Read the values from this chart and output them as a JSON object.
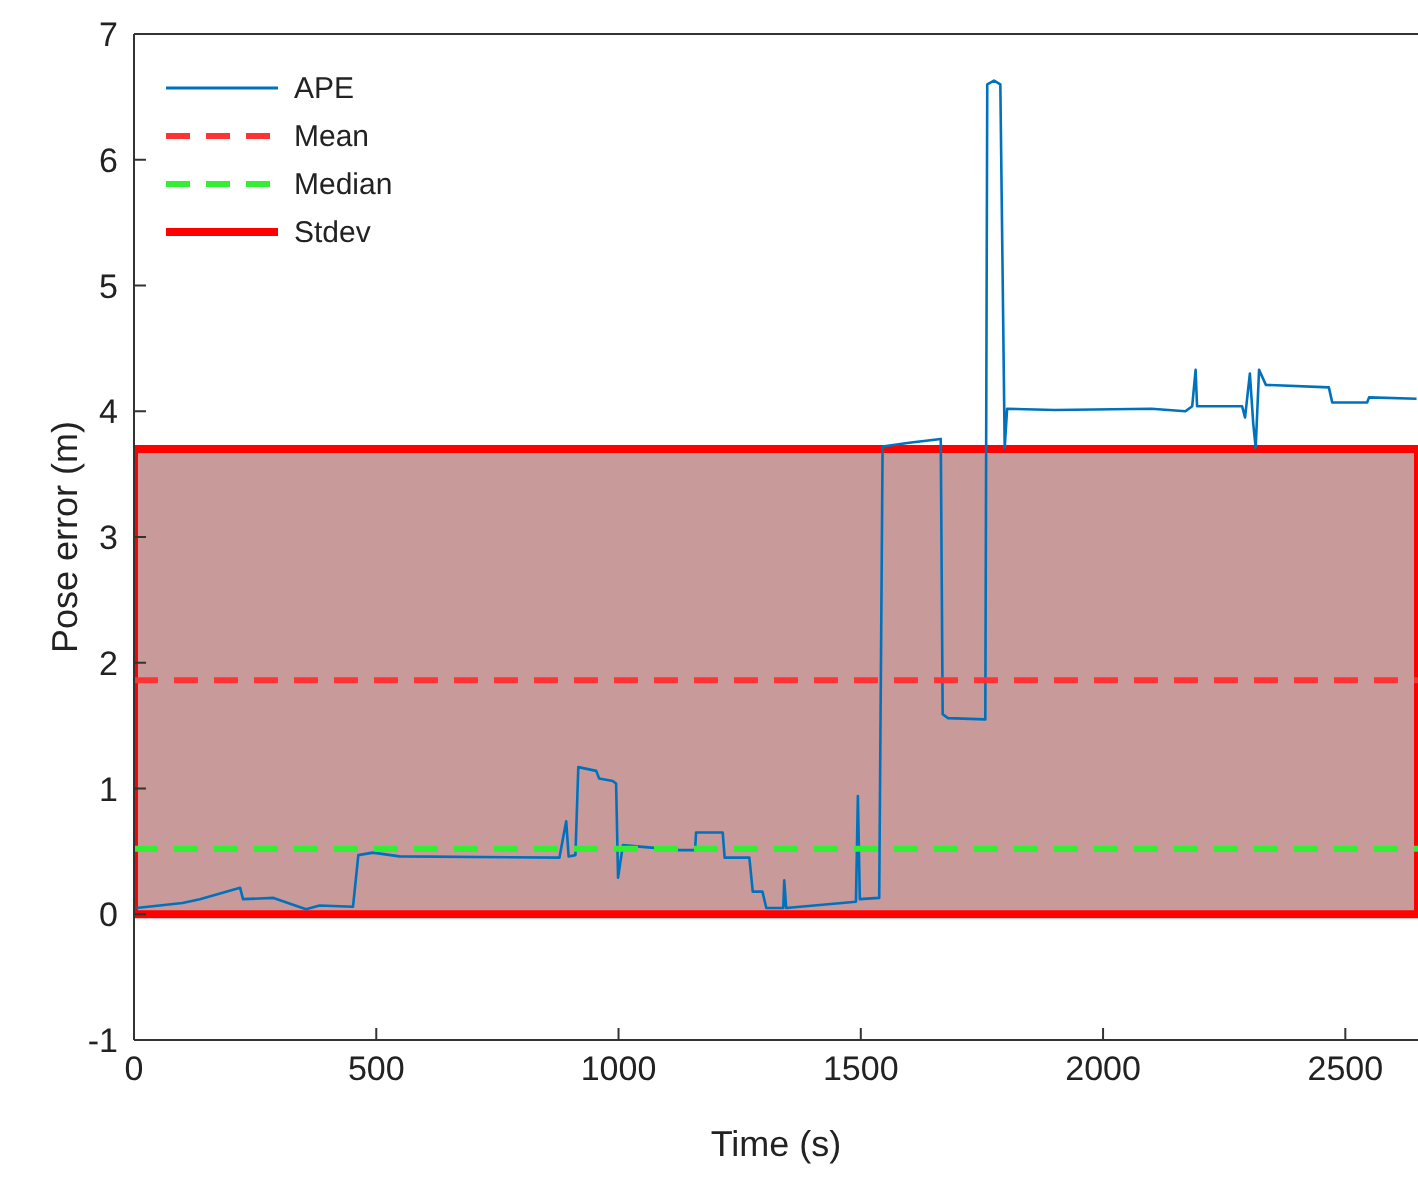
{
  "chart_data": {
    "type": "line",
    "xlabel": "Time (s)",
    "ylabel": "Pose error (m)",
    "xlim": [
      0,
      2650
    ],
    "xticks": [
      0,
      500,
      1000,
      1500,
      2000,
      2500
    ],
    "ylim": [
      -1,
      7
    ],
    "yticks": [
      -1,
      0,
      1,
      2,
      3,
      4,
      5,
      6,
      7
    ],
    "grid": false,
    "legend": "top left",
    "line_style": "solid",
    "marker": "none",
    "series": [
      {
        "name": "APE",
        "color": "#0072bd",
        "x": [
          5,
          100,
          136,
          219,
          225,
          288,
          355,
          383,
          452,
          463,
          493,
          548,
          878,
          892,
          897,
          911,
          917,
          954,
          960,
          988,
          995,
          999,
          1009,
          1126,
          1158,
          1160,
          1215,
          1219,
          1270,
          1277,
          1297,
          1305,
          1340,
          1342,
          1346,
          1490,
          1494,
          1498,
          1538,
          1545,
          1600,
          1665,
          1669,
          1680,
          1757,
          1761,
          1775,
          1788,
          1797,
          1802,
          1900,
          2100,
          2170,
          2184,
          2191,
          2194,
          2287,
          2293,
          2303,
          2310,
          2315,
          2322,
          2336,
          2466,
          2473,
          2545,
          2549,
          2647
        ],
        "values": [
          0.05,
          0.09,
          0.12,
          0.21,
          0.12,
          0.13,
          0.04,
          0.07,
          0.06,
          0.47,
          0.49,
          0.46,
          0.45,
          0.74,
          0.46,
          0.47,
          1.17,
          1.14,
          1.08,
          1.06,
          1.04,
          0.29,
          0.55,
          0.51,
          0.51,
          0.65,
          0.65,
          0.45,
          0.45,
          0.18,
          0.18,
          0.05,
          0.05,
          0.27,
          0.05,
          0.1,
          0.94,
          0.12,
          0.13,
          3.72,
          3.75,
          3.78,
          1.59,
          1.56,
          1.55,
          6.6,
          6.63,
          6.6,
          3.71,
          4.02,
          4.01,
          4.02,
          4.0,
          4.04,
          4.33,
          4.04,
          4.04,
          3.95,
          4.3,
          3.9,
          3.71,
          4.33,
          4.21,
          4.19,
          4.07,
          4.07,
          4.11,
          4.1
        ]
      }
    ],
    "ref_lines": [
      {
        "axis": "y",
        "value": 1.86,
        "label": "Mean",
        "color": "#ff3333",
        "line_style": "dashed"
      },
      {
        "axis": "y",
        "value": 0.52,
        "label": "Median",
        "color": "#33ee33",
        "line_style": "dashed"
      }
    ],
    "bands": [
      {
        "axis": "y",
        "from": 0,
        "to": 3.7,
        "label": "Stdev",
        "color": "#ff0000"
      }
    ]
  }
}
